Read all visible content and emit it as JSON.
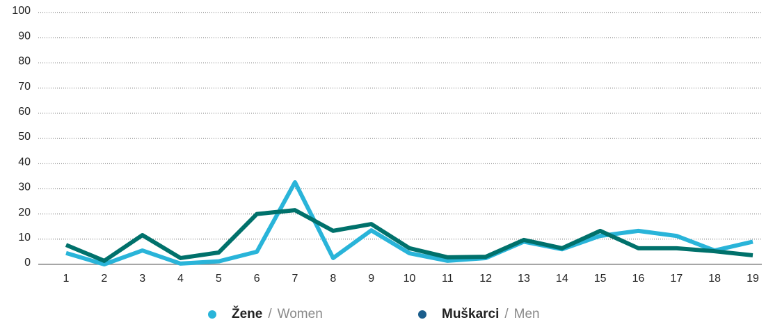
{
  "chart_data": {
    "type": "line",
    "categories": [
      "1",
      "2",
      "3",
      "4",
      "5",
      "6",
      "7",
      "8",
      "9",
      "10",
      "11",
      "12",
      "13",
      "14",
      "15",
      "16",
      "17",
      "18",
      "19"
    ],
    "series": [
      {
        "name": "Žene",
        "translation": "Women",
        "color": "#29b4d9",
        "values": [
          4.5,
          0,
          5.5,
          0.3,
          1.2,
          5,
          32.6,
          2.5,
          13.5,
          4.4,
          1.4,
          2.5,
          9,
          6,
          11.3,
          13.3,
          11.3,
          5.5,
          9
        ]
      },
      {
        "name": "Muškarci",
        "translation": "Men",
        "color": "#00716b",
        "legend_color": "#1b5e8c",
        "values": [
          7.7,
          1.4,
          11.6,
          2.5,
          4.7,
          20,
          21.5,
          13.3,
          16,
          6.4,
          2.8,
          3,
          9.7,
          6.4,
          13.3,
          6.4,
          6.4,
          5.2,
          3.6
        ]
      }
    ],
    "legend_separator": "/",
    "ylim": [
      0,
      100
    ],
    "yticks": [
      0,
      10,
      20,
      30,
      40,
      50,
      60,
      70,
      80,
      90,
      100
    ],
    "grid": true
  }
}
